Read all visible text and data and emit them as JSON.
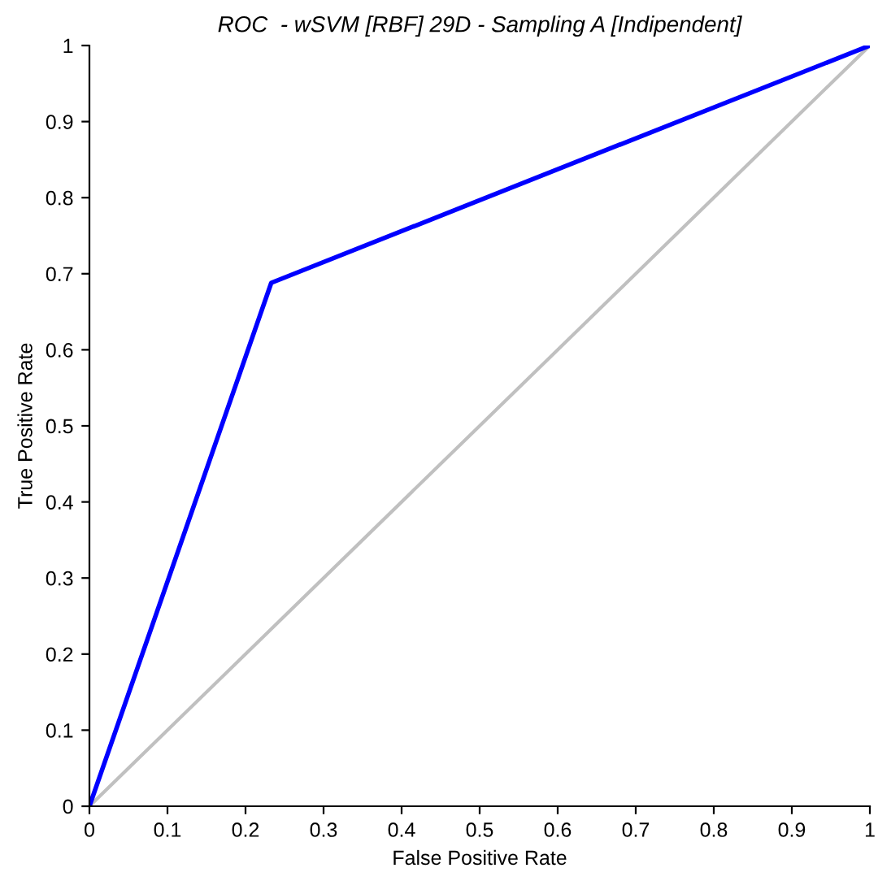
{
  "chart_data": {
    "type": "line",
    "title": "ROC  - wSVM [RBF] 29D - Sampling A [Indipendent]",
    "xlabel": "False Positive Rate",
    "ylabel": "True Positive Rate",
    "series": [
      {
        "color": "#c0c0c0",
        "x": [
          0,
          1
        ],
        "values": [
          0,
          1
        ]
      },
      {
        "color": "#0000ff",
        "x": [
          0,
          0.233,
          1
        ],
        "values": [
          0,
          0.688,
          1
        ]
      }
    ],
    "xlim": [
      0,
      1
    ],
    "ylim": [
      0,
      1
    ],
    "xticks": [
      0,
      0.1,
      0.2,
      0.3,
      0.4,
      0.5,
      0.6,
      0.7,
      0.8,
      0.9,
      1
    ],
    "yticks": [
      0,
      0.1,
      0.2,
      0.3,
      0.4,
      0.5,
      0.6,
      0.7,
      0.8,
      0.9,
      1
    ],
    "grid": false,
    "legend": false
  }
}
